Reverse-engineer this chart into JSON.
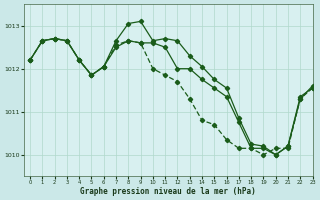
{
  "title": "Graphe pression niveau de la mer (hPa)",
  "background_color": "#cbe8e8",
  "plot_background_color": "#d8f0f0",
  "line_color": "#1a5c1a",
  "grid_color": "#b0d8cc",
  "ylim": [
    1009.5,
    1013.5
  ],
  "xlim": [
    -0.5,
    23
  ],
  "yticks": [
    1010,
    1011,
    1012,
    1013
  ],
  "xticks": [
    0,
    1,
    2,
    3,
    4,
    5,
    6,
    7,
    8,
    9,
    10,
    11,
    12,
    13,
    14,
    15,
    16,
    17,
    18,
    19,
    20,
    21,
    22,
    23
  ],
  "line1_x": [
    0,
    1,
    2,
    3,
    4,
    5,
    6,
    7,
    8,
    9,
    10,
    11,
    12,
    13,
    14,
    15,
    16,
    17,
    18,
    19,
    20,
    21,
    22,
    23
  ],
  "line1_y": [
    1012.2,
    1012.65,
    1012.7,
    1012.65,
    1012.2,
    1011.85,
    1012.05,
    1012.65,
    1013.05,
    1013.1,
    1012.65,
    1012.7,
    1012.65,
    1012.3,
    1012.05,
    1011.75,
    1011.55,
    1010.85,
    1010.25,
    1010.2,
    1010.0,
    1010.2,
    1011.3,
    1011.6
  ],
  "line2_x": [
    0,
    1,
    2,
    3,
    4,
    5,
    6,
    7,
    8,
    9,
    10,
    11,
    12,
    13,
    14,
    15,
    16,
    17,
    18,
    19,
    20,
    21,
    22,
    23
  ],
  "line2_y": [
    1012.2,
    1012.65,
    1012.7,
    1012.65,
    1012.2,
    1011.85,
    1012.05,
    1012.5,
    1012.65,
    1012.6,
    1012.6,
    1012.5,
    1012.0,
    1012.0,
    1011.75,
    1011.55,
    1011.35,
    1010.75,
    1010.15,
    1010.15,
    1010.0,
    1010.2,
    1011.35,
    1011.55
  ],
  "line3_x": [
    0,
    1,
    2,
    3,
    4,
    5,
    6,
    7,
    8,
    9,
    10,
    11,
    12,
    13,
    14,
    15,
    16,
    17,
    18,
    19,
    20,
    21,
    22,
    23
  ],
  "line3_y": [
    1012.2,
    1012.65,
    1012.7,
    1012.65,
    1012.2,
    1011.85,
    1012.05,
    1012.55,
    1012.65,
    1012.6,
    1012.0,
    1011.85,
    1011.7,
    1011.3,
    1010.8,
    1010.7,
    1010.35,
    1010.15,
    1010.15,
    1010.0,
    1010.15,
    1010.15,
    1011.3,
    1011.55
  ]
}
